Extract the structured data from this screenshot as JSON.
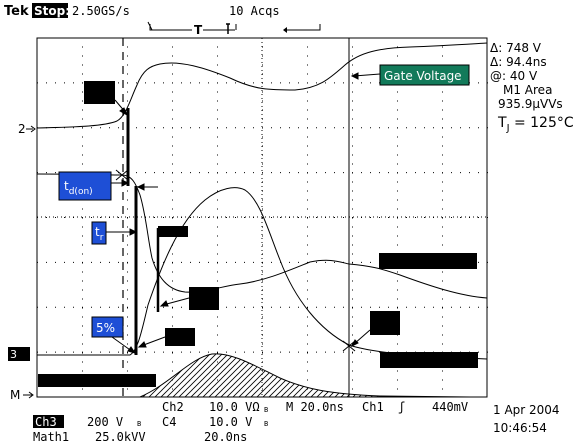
{
  "header": {
    "brand": "Tek",
    "run_state": "Stop:",
    "sample_rate": "2.50GS/s",
    "acquisitions": "10 Acqs"
  },
  "readout": {
    "delta_v": "Δ: 748 V",
    "delta_t": "Δ: 94.4ns",
    "at_v": "@: 40 V",
    "measure_label": "M1 Area",
    "measure_value": "935.9µVVs",
    "tj_prefix": "T",
    "tj_sub": "J",
    "tj_value": " = 125°C"
  },
  "annotations": {
    "gate_voltage": "Gate Voltage",
    "td_on_main": "t",
    "td_on_sub": "d(on)",
    "tr_main": "t",
    "tr_sub": "r",
    "five_percent": "5%"
  },
  "markers": {
    "ch2": "2",
    "ch3": "3",
    "math": "M",
    "trigger_t": "T"
  },
  "footer": {
    "ch2_label": "Ch2",
    "ch2_scale": "10.0 VΩ",
    "ch2_bw": "B",
    "timebase": "M 20.0ns",
    "trigger_src": "Ch1",
    "trigger_slope": "ʃ",
    "trigger_level": "440mV",
    "ch3_label": "Ch3",
    "ch3_scale": "200 V",
    "ch3_bw": "B",
    "ch4_label": "C4",
    "ch4_scale": "10.0 V",
    "ch4_bw": "B",
    "math_label": "Math1",
    "math_scale": "25.0kVV",
    "math_time": "20.0ns",
    "date": "1 Apr 2004",
    "time": "10:46:54"
  },
  "colors": {
    "blue_label": "#1e4fd6",
    "gate_label": "#127a5a"
  }
}
